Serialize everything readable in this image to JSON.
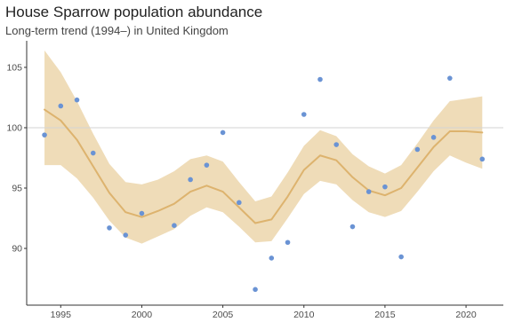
{
  "chart_data": {
    "type": "line",
    "title": "House Sparrow population abundance",
    "subtitle": "Long-term trend (1994–) in United Kingdom",
    "xlabel": "",
    "ylabel": "",
    "xlim": [
      1992.9,
      2022.3
    ],
    "ylim": [
      85.3,
      107.2
    ],
    "x_ticks": [
      1995,
      2000,
      2005,
      2010,
      2015,
      2020
    ],
    "y_ticks": [
      90,
      95,
      100,
      105
    ],
    "reference_line": 100,
    "grid": false,
    "colors": {
      "trend": "#ddb36e",
      "band": "#efdcb8",
      "points": "#6a93d4",
      "reference": "#d3d3d3"
    },
    "trend": {
      "x": [
        1994,
        1995,
        1996,
        1997,
        1998,
        1999,
        2000,
        2001,
        2002,
        2003,
        2004,
        2005,
        2006,
        2007,
        2008,
        2009,
        2010,
        2011,
        2012,
        2013,
        2014,
        2015,
        2016,
        2017,
        2018,
        2019,
        2020,
        2021
      ],
      "y": [
        101.5,
        100.6,
        99.0,
        96.8,
        94.6,
        93.0,
        92.6,
        93.1,
        93.7,
        94.7,
        95.2,
        94.7,
        93.4,
        92.1,
        92.4,
        94.3,
        96.5,
        97.7,
        97.3,
        95.9,
        94.8,
        94.4,
        95.0,
        96.7,
        98.4,
        99.7,
        99.7,
        99.6
      ],
      "lower": [
        96.9,
        96.9,
        95.8,
        94.2,
        92.3,
        90.9,
        90.4,
        91.0,
        91.6,
        92.7,
        93.4,
        93.0,
        91.8,
        90.5,
        90.6,
        92.5,
        94.5,
        95.6,
        95.3,
        94.0,
        93.0,
        92.6,
        93.1,
        94.7,
        96.4,
        97.7,
        97.1,
        96.6
      ],
      "upper": [
        106.4,
        104.6,
        102.2,
        99.5,
        97.0,
        95.5,
        95.3,
        95.7,
        96.4,
        97.4,
        97.7,
        97.2,
        95.5,
        93.9,
        94.3,
        96.3,
        98.5,
        99.8,
        99.3,
        97.8,
        96.8,
        96.2,
        96.9,
        98.7,
        100.6,
        102.2,
        102.4,
        102.6
      ]
    },
    "points": [
      {
        "x": 1994,
        "y": 99.4
      },
      {
        "x": 1995,
        "y": 101.8
      },
      {
        "x": 1996,
        "y": 102.3
      },
      {
        "x": 1997,
        "y": 97.9
      },
      {
        "x": 1998,
        "y": 91.7
      },
      {
        "x": 1999,
        "y": 91.1
      },
      {
        "x": 2000,
        "y": 92.9
      },
      {
        "x": 2002,
        "y": 91.9
      },
      {
        "x": 2003,
        "y": 95.7
      },
      {
        "x": 2004,
        "y": 96.9
      },
      {
        "x": 2005,
        "y": 99.6
      },
      {
        "x": 2006,
        "y": 93.8
      },
      {
        "x": 2007,
        "y": 86.6
      },
      {
        "x": 2008,
        "y": 89.2
      },
      {
        "x": 2009,
        "y": 90.5
      },
      {
        "x": 2010,
        "y": 101.1
      },
      {
        "x": 2011,
        "y": 104.0
      },
      {
        "x": 2012,
        "y": 98.6
      },
      {
        "x": 2013,
        "y": 91.8
      },
      {
        "x": 2014,
        "y": 94.7
      },
      {
        "x": 2015,
        "y": 95.1
      },
      {
        "x": 2016,
        "y": 89.3
      },
      {
        "x": 2017,
        "y": 98.2
      },
      {
        "x": 2018,
        "y": 99.2
      },
      {
        "x": 2019,
        "y": 104.1
      },
      {
        "x": 2021,
        "y": 97.4
      }
    ]
  }
}
